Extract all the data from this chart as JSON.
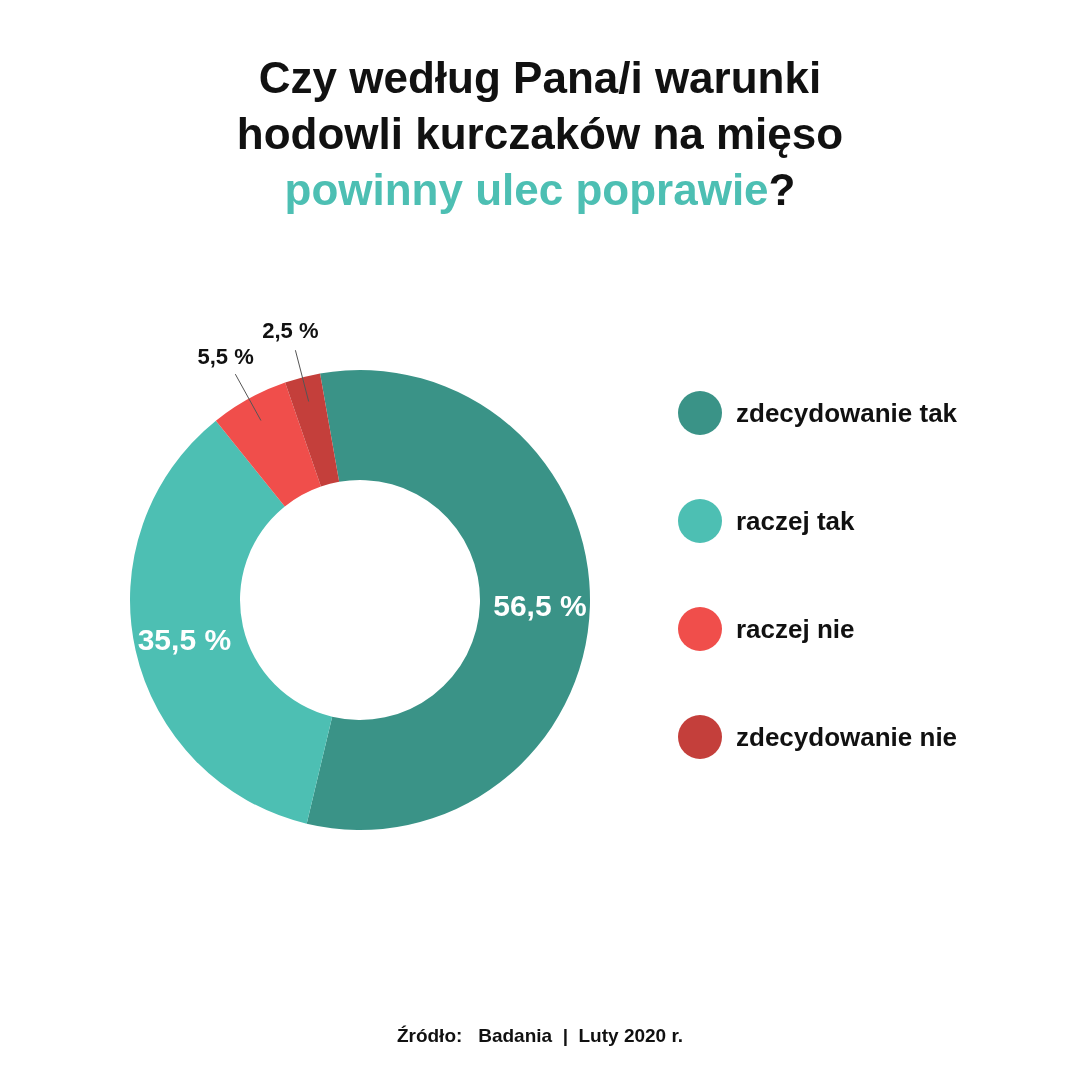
{
  "chart_data": {
    "type": "donut",
    "title": "Czy według Pana/i warunki hodowli kurczaków na mięso powinny ulec poprawie?",
    "categories": [
      "zdecydowanie tak",
      "raczej tak",
      "raczej nie",
      "zdecydowanie nie"
    ],
    "values": [
      56.5,
      35.5,
      5.5,
      2.5
    ],
    "colors": [
      "#3a9387",
      "#4dbfb3",
      "#f04e4b",
      "#c43f3b"
    ],
    "value_labels": [
      "56,5 %",
      "35,5 %",
      "5,5 %",
      "2,5 %"
    ],
    "legend": "right",
    "annotations": [
      "Źródło:   Badania  |  Luty 2020 r."
    ]
  }
}
